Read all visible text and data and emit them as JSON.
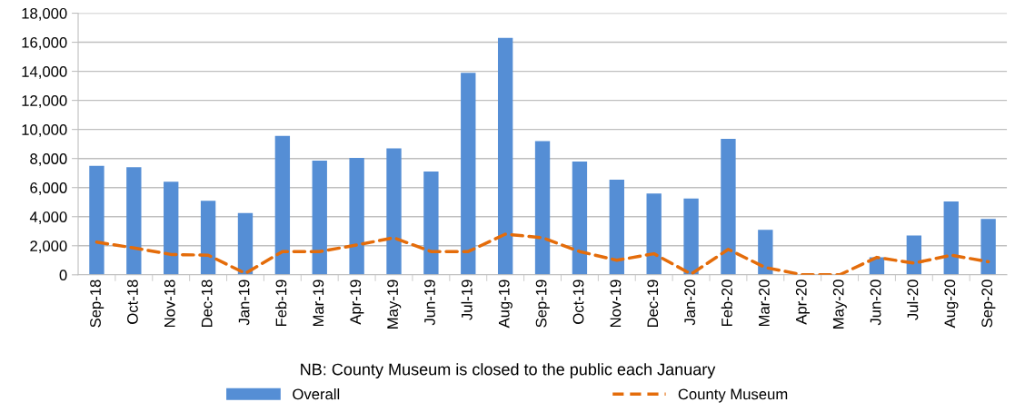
{
  "chart_data": {
    "type": "bar",
    "categories": [
      "Sep-18",
      "Oct-18",
      "Nov-18",
      "Dec-18",
      "Jan-19",
      "Feb-19",
      "Mar-19",
      "Apr-19",
      "May-19",
      "Jun-19",
      "Jul-19",
      "Aug-19",
      "Sep-19",
      "Oct-19",
      "Nov-19",
      "Dec-19",
      "Jan-20",
      "Feb-20",
      "Mar-20",
      "Apr-20",
      "May-20",
      "Jun-20",
      "Jul-20",
      "Aug-20",
      "Sep-20"
    ],
    "series": [
      {
        "name": "Overall",
        "color": "#558ed5",
        "values": [
          7500,
          7400,
          6400,
          5100,
          4250,
          9550,
          7850,
          8050,
          8700,
          7100,
          13900,
          16300,
          9200,
          7800,
          6550,
          5600,
          5250,
          9350,
          3100,
          0,
          0,
          1200,
          2700,
          5050,
          3850
        ]
      },
      {
        "name": "County Museum",
        "type": "line",
        "color": "#e46c0a",
        "line_style": "dashed",
        "values": [
          2250,
          1850,
          1400,
          1350,
          100,
          1600,
          1600,
          2050,
          2550,
          1600,
          1600,
          2800,
          2550,
          1600,
          1000,
          1450,
          50,
          1750,
          500,
          0,
          0,
          1200,
          800,
          1350,
          900
        ]
      }
    ],
    "ylim": [
      0,
      18000
    ],
    "yticks": [
      {
        "value": 0,
        "label": "0"
      },
      {
        "value": 2000,
        "label": "2,000"
      },
      {
        "value": 4000,
        "label": "4,000"
      },
      {
        "value": 6000,
        "label": "6,000"
      },
      {
        "value": 8000,
        "label": "8,000"
      },
      {
        "value": 10000,
        "label": "10,000"
      },
      {
        "value": 12000,
        "label": "12,000"
      },
      {
        "value": 14000,
        "label": "14,000"
      },
      {
        "value": 16000,
        "label": "16,000"
      },
      {
        "value": 18000,
        "label": "18,000"
      }
    ],
    "grid": "y",
    "legend": "bottom",
    "marker": "none",
    "annotations": [
      "NB: County Museum is closed to the public each January"
    ]
  }
}
